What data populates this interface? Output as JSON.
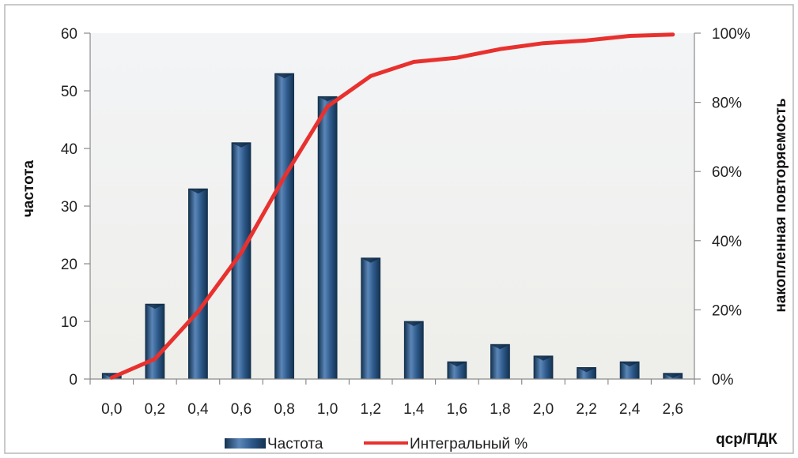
{
  "chart_data": {
    "type": "bar",
    "categories": [
      "0,0",
      "0,2",
      "0,4",
      "0,6",
      "0,8",
      "1,0",
      "1,2",
      "1,4",
      "1,6",
      "1,8",
      "2,0",
      "2,2",
      "2,4",
      "2,6"
    ],
    "series": [
      {
        "name": "Частота",
        "type": "bar",
        "axis": "left",
        "values": [
          1,
          13,
          33,
          41,
          53,
          49,
          21,
          10,
          3,
          6,
          4,
          2,
          3,
          1
        ]
      },
      {
        "name": "Интегральный %",
        "type": "line",
        "axis": "right",
        "values": [
          0.4,
          5.8,
          19.5,
          36.5,
          58.5,
          78.8,
          87.6,
          91.7,
          92.9,
          95.4,
          97.1,
          97.9,
          99.2,
          99.6
        ]
      }
    ],
    "xlabel": "qср/ПДК",
    "ylabel": "частота",
    "ylabel_right": "накопленная повторяемость",
    "ylim": [
      0,
      60
    ],
    "yticks": [
      "0",
      "10",
      "20",
      "30",
      "40",
      "50",
      "60"
    ],
    "ylim_right": [
      0,
      100
    ],
    "yticks_right": [
      "0%",
      "20%",
      "40%",
      "60%",
      "80%",
      "100%"
    ],
    "legend_position": "bottom",
    "grid": false,
    "colors": {
      "bar": "#2e5a8c",
      "bar_light": "#5b86b8",
      "bar_dark": "#14324f",
      "line": "#e8312e",
      "plot_bg": "#f0f0ed",
      "plot_bg_top": "#f3f4f6"
    }
  }
}
